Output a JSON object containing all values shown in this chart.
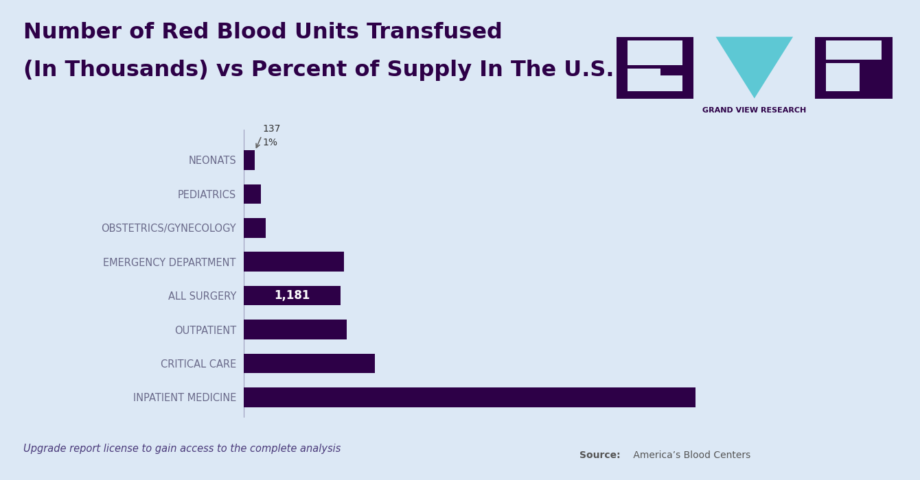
{
  "title_line1": "Number of Red Blood Units Transfused",
  "title_line2": "(In Thousands) vs Percent of Supply In The U.S.",
  "categories": [
    "INPATIENT MEDICINE",
    "CRITICAL CARE",
    "OUTPATIENT",
    "ALL SURGERY",
    "EMERGENCY DEPARTMENT",
    "OBSTETRICS/GYNECOLOGY",
    "PEDIATRICS",
    "NEONATS"
  ],
  "values": [
    5500,
    1600,
    1250,
    1181,
    1220,
    270,
    210,
    137
  ],
  "bar_color": "#2d0047",
  "background_color": "#dce8f5",
  "title_color": "#2d0047",
  "label_color": "#6a6a8a",
  "annotation_neonats_value": "137",
  "annotation_neonats_pct": "1%",
  "annotation_surgery_label": "1,181",
  "footer_italic": "Upgrade report license to gain access to the complete analysis",
  "source_bold": "Source:",
  "source_text": " America’s Blood Centers",
  "gvr_label": "GRAND VIEW RESEARCH",
  "logo_purple": "#2d0047",
  "logo_cyan": "#5dc8d4"
}
